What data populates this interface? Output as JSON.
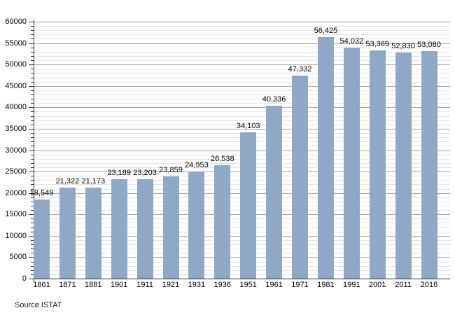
{
  "chart_data": {
    "type": "bar",
    "title": "",
    "xlabel": "",
    "ylabel": "",
    "categories": [
      "1861",
      "1871",
      "1881",
      "1901",
      "1911",
      "1921",
      "1931",
      "1936",
      "1951",
      "1961",
      "1971",
      "1981",
      "1991",
      "2001",
      "2011",
      "2016"
    ],
    "values": [
      18549,
      21322,
      21173,
      23189,
      23203,
      23859,
      24953,
      26538,
      34103,
      40336,
      47332,
      56425,
      54032,
      53369,
      52830,
      53080
    ],
    "value_labels": [
      "18,549",
      "21,322",
      "21,173",
      "23,189",
      "23,203",
      "23,859",
      "24,953",
      "26,538",
      "34,103",
      "40,336",
      "47,332",
      "56,425",
      "54,032",
      "53,369",
      "52,830",
      "53,080"
    ],
    "ylim": [
      0,
      60000
    ],
    "y_major_step": 5000,
    "y_minor_step": 1000,
    "y_tick_labels": [
      "0",
      "5000",
      "10000",
      "15000",
      "20000",
      "25000",
      "30000",
      "35000",
      "40000",
      "45000",
      "50000",
      "55000",
      "60000"
    ],
    "grid": "on",
    "legend": "none",
    "source": "Source ISTAT",
    "colors": {
      "bar": "#8FA8C5",
      "grid_major": "#a3a3a3",
      "grid_minor": "#e3e3e3",
      "axis": "#333333",
      "text": "#000000"
    }
  }
}
